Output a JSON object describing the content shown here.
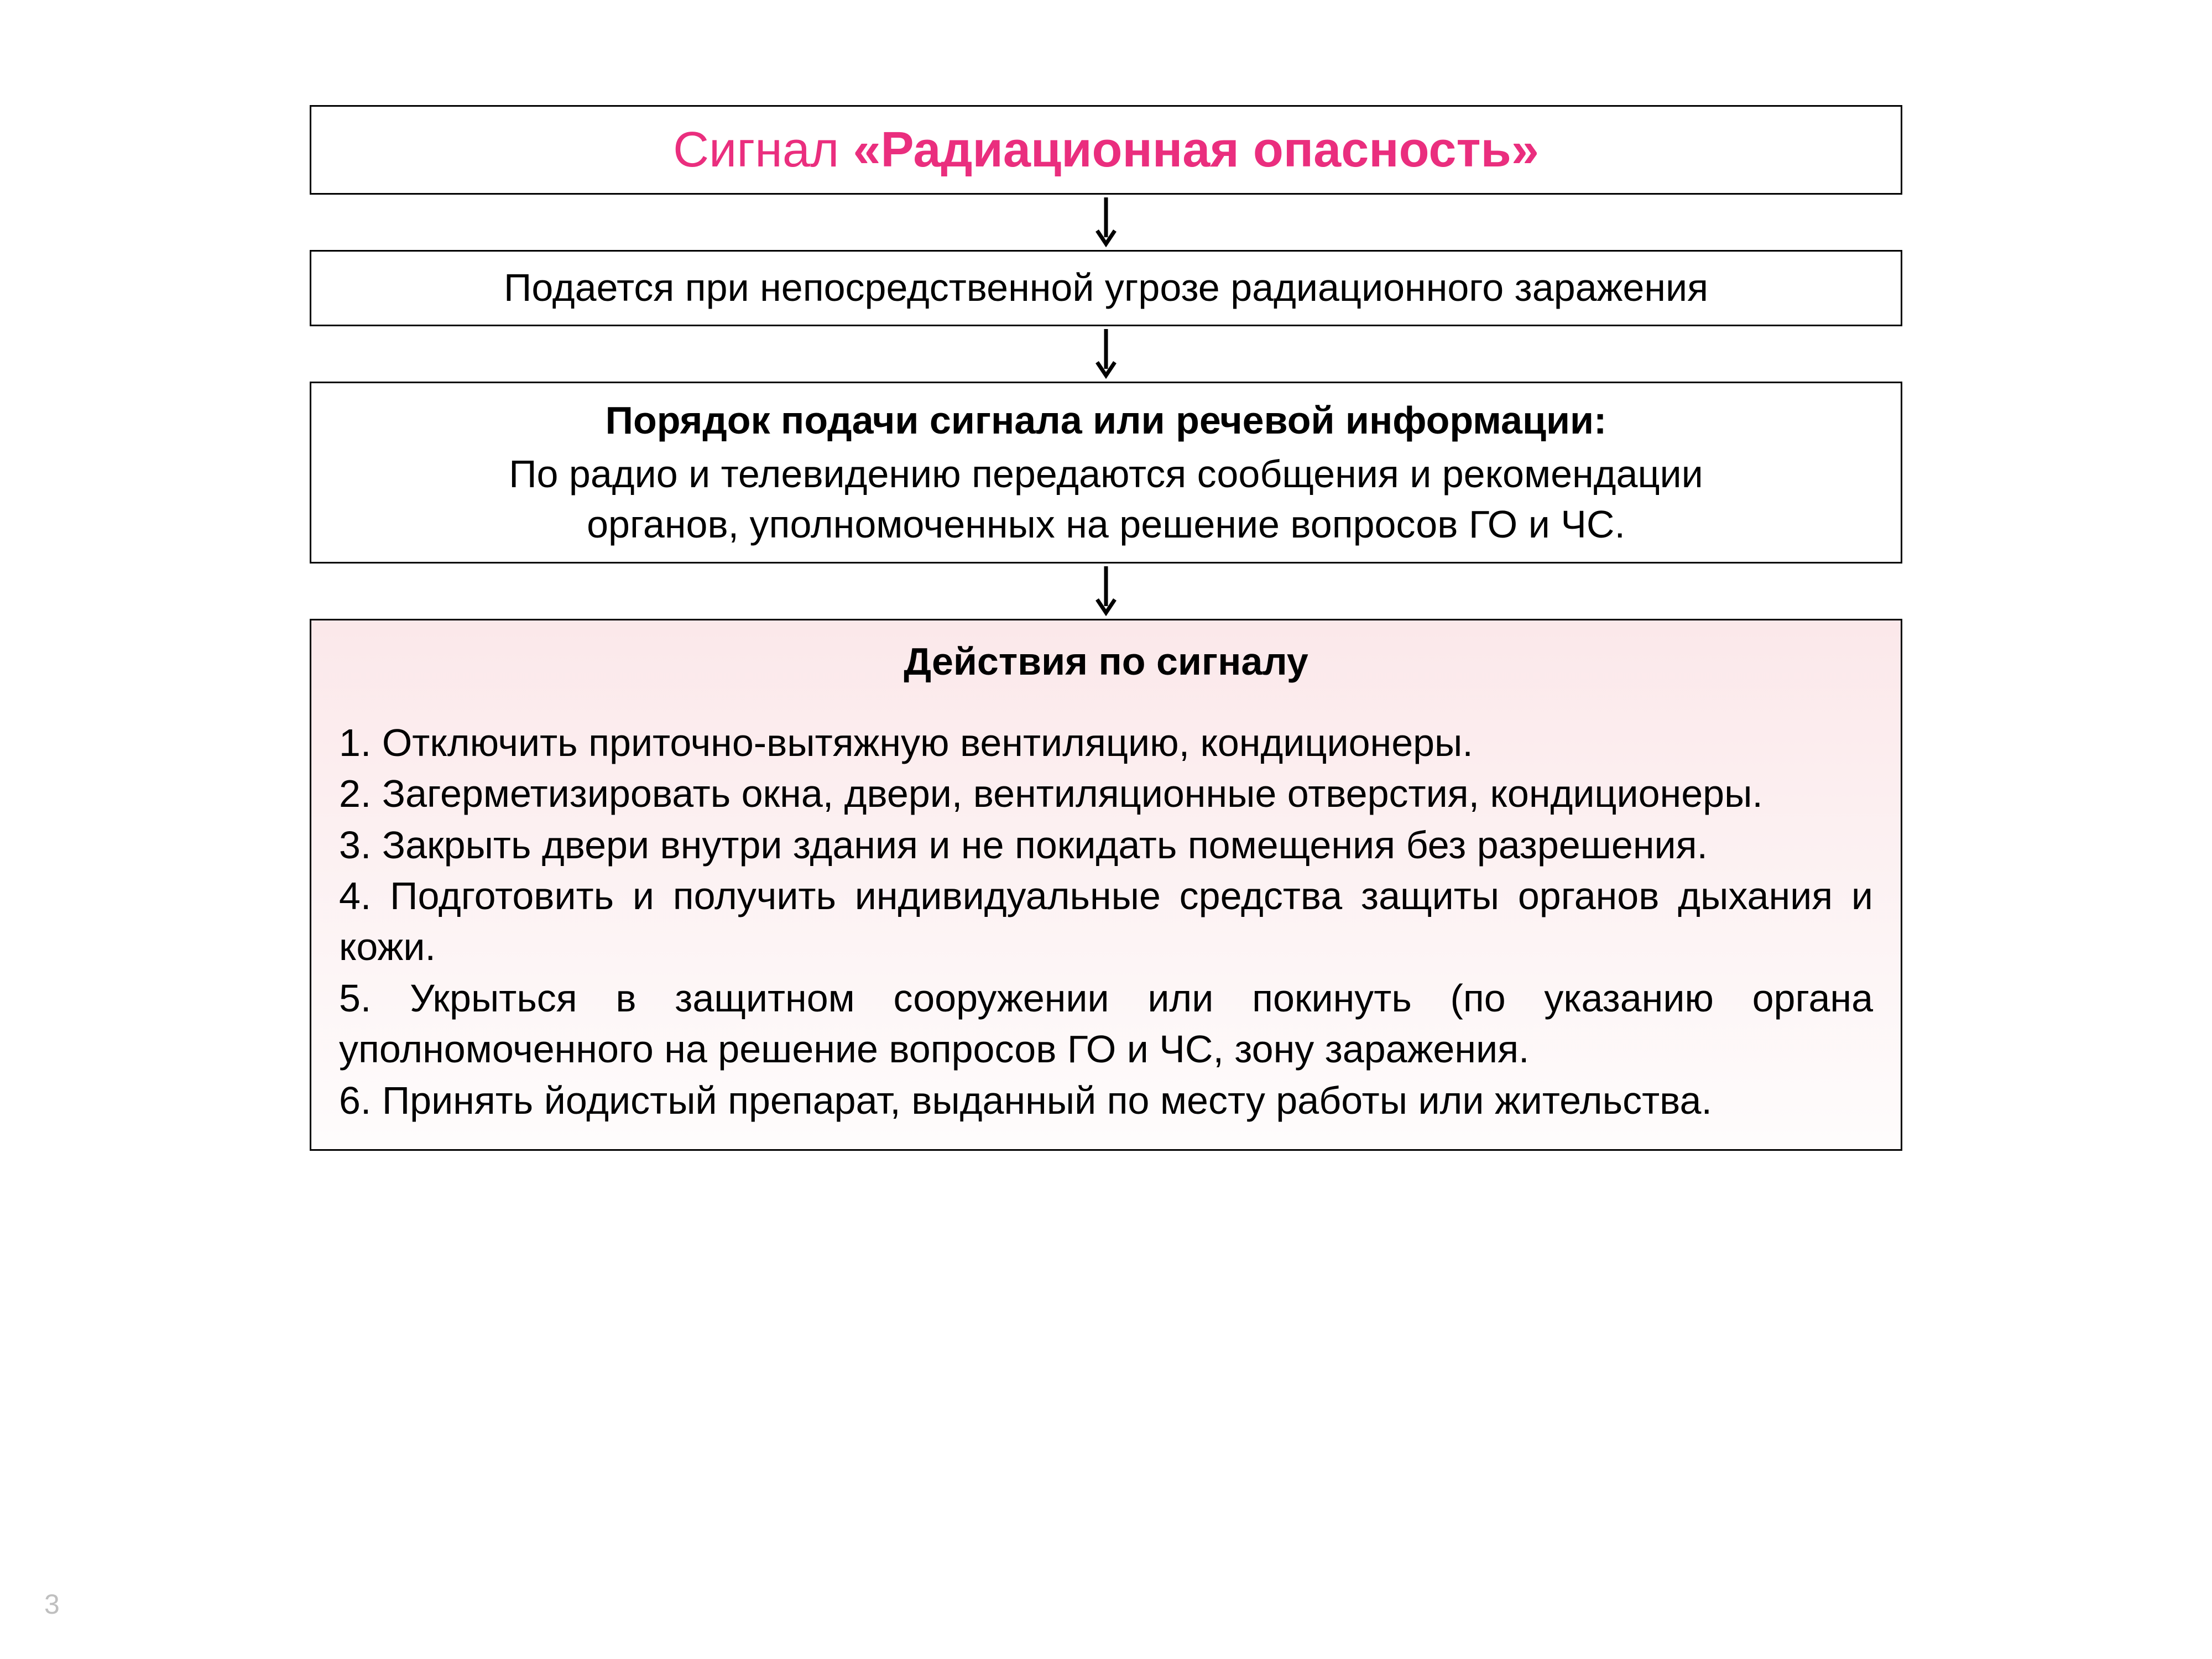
{
  "colors": {
    "accent": "#ea2e7e",
    "border": "#000000",
    "text": "#000000",
    "page_num": "#bfbfbf",
    "actions_bg_top": "#fbe8ea",
    "actions_bg_bottom": "#fefcfc",
    "background": "#ffffff"
  },
  "typography": {
    "title_fontsize_pt": 32,
    "body_fontsize_pt": 25,
    "font_family": "Arial"
  },
  "layout": {
    "type": "flowchart",
    "direction": "top-down",
    "arrow_count": 3
  },
  "title": {
    "prefix": "Сигнал ",
    "main": "«Радиационная опасность»"
  },
  "subtitle": "Подается при непосредственной угрозе радиационного заражения",
  "procedure": {
    "heading": "Порядок подачи сигнала или речевой информации:",
    "body_line1": "По радио и телевидению передаются сообщения и рекомендации",
    "body_line2": "органов, уполномоченных на решение вопросов ГО и ЧС."
  },
  "actions": {
    "heading": "Действия по сигналу",
    "items": [
      "1. Отключить приточно-вытяжную вентиляцию, кондиционеры.",
      "2. Загерметизировать окна, двери, вентиляционные отверстия, кондиционеры.",
      "3. Закрыть двери внутри здания и не покидать помещения без разрешения.",
      "4. Подготовить и получить индивидуальные средства защиты органов дыхания и кожи.",
      "5. Укрыться в защитном сооружении или покинуть (по указанию органа уполномоченного на решение вопросов ГО и ЧС, зону заражения.",
      "6. Принять йодистый препарат, выданный по месту работы или жительства."
    ]
  },
  "page_number": "3"
}
